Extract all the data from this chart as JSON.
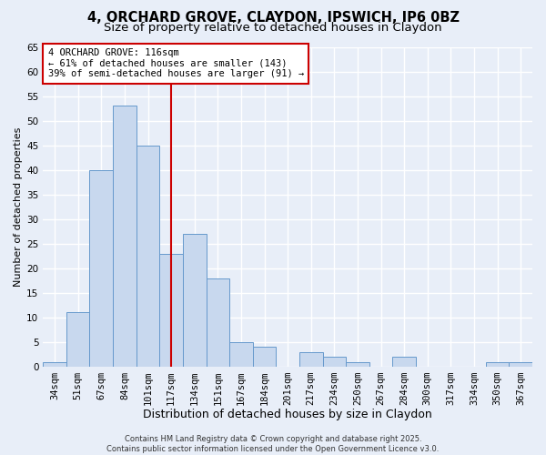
{
  "title": "4, ORCHARD GROVE, CLAYDON, IPSWICH, IP6 0BZ",
  "subtitle": "Size of property relative to detached houses in Claydon",
  "xlabel": "Distribution of detached houses by size in Claydon",
  "ylabel": "Number of detached properties",
  "bar_labels": [
    "34sqm",
    "51sqm",
    "67sqm",
    "84sqm",
    "101sqm",
    "117sqm",
    "134sqm",
    "151sqm",
    "167sqm",
    "184sqm",
    "201sqm",
    "217sqm",
    "234sqm",
    "250sqm",
    "267sqm",
    "284sqm",
    "300sqm",
    "317sqm",
    "334sqm",
    "350sqm",
    "367sqm"
  ],
  "bar_values": [
    1,
    11,
    40,
    53,
    45,
    23,
    27,
    18,
    5,
    4,
    0,
    3,
    2,
    1,
    0,
    2,
    0,
    0,
    0,
    1,
    1
  ],
  "bar_color": "#c8d8ee",
  "bar_edgecolor": "#6699cc",
  "ylim": [
    0,
    65
  ],
  "yticks": [
    0,
    5,
    10,
    15,
    20,
    25,
    30,
    35,
    40,
    45,
    50,
    55,
    60,
    65
  ],
  "vline_x_index": 5,
  "vline_color": "#cc0000",
  "annotation_title": "4 ORCHARD GROVE: 116sqm",
  "annotation_line1": "← 61% of detached houses are smaller (143)",
  "annotation_line2": "39% of semi-detached houses are larger (91) →",
  "annotation_box_color": "#cc0000",
  "footer1": "Contains HM Land Registry data © Crown copyright and database right 2025.",
  "footer2": "Contains public sector information licensed under the Open Government Licence v3.0.",
  "bg_color": "#e8eef8",
  "plot_bg_color": "#e8eef8",
  "grid_color": "#ffffff",
  "title_fontsize": 10.5,
  "subtitle_fontsize": 9.5,
  "xlabel_fontsize": 9,
  "ylabel_fontsize": 8,
  "tick_fontsize": 7.5,
  "footer_fontsize": 6
}
